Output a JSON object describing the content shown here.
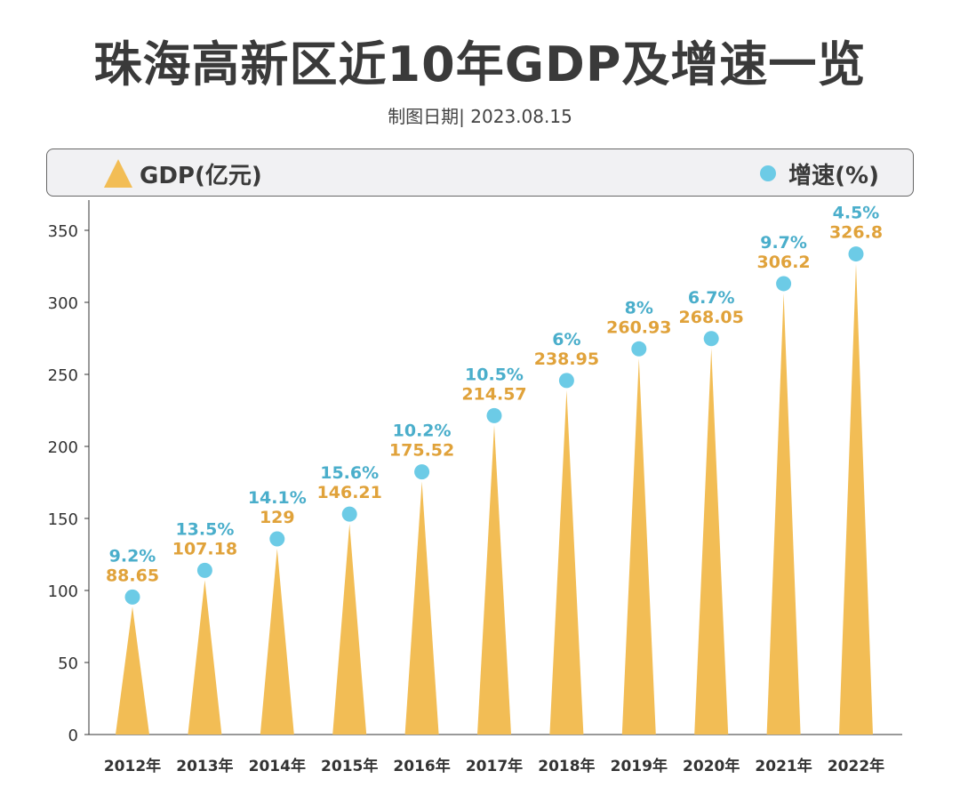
{
  "title": "珠海高新区近10年GDP及增速一览",
  "subtitle": "制图日期| 2023.08.15",
  "legend": {
    "gdp": "GDP(亿元)",
    "rate": "增速(%)"
  },
  "colors": {
    "gdp": "#f2bd55",
    "rate": "#6ccbe6",
    "gdp_label": "#e0a23a",
    "rate_label": "#4aaecb"
  },
  "chart_data": {
    "type": "bar",
    "mark": "triangle",
    "categories": [
      "2012年",
      "2013年",
      "2014年",
      "2015年",
      "2016年",
      "2017年",
      "2018年",
      "2019年",
      "2020年",
      "2021年",
      "2022年"
    ],
    "series": [
      {
        "name": "GDP(亿元)",
        "values": [
          88.65,
          107.18,
          129,
          146.21,
          175.52,
          214.57,
          238.95,
          260.93,
          268.05,
          306.2,
          326.8
        ],
        "labels": [
          "88.65",
          "107.18",
          "129",
          "146.21",
          "175.52",
          "214.57",
          "238.95",
          "260.93",
          "268.05",
          "306.2",
          "326.8"
        ]
      },
      {
        "name": "增速(%)",
        "values": [
          9.2,
          13.5,
          14.1,
          15.6,
          10.2,
          10.5,
          6,
          8,
          6.7,
          9.7,
          4.5
        ],
        "labels": [
          "9.2%",
          "13.5%",
          "14.1%",
          "15.6%",
          "10.2%",
          "10.5%",
          "6%",
          "8%",
          "6.7%",
          "9.7%",
          "4.5%"
        ]
      }
    ],
    "yticks": [
      0,
      50,
      100,
      150,
      200,
      250,
      300,
      350
    ],
    "ylim": [
      0,
      350
    ],
    "grid": false,
    "legend_position": "top"
  }
}
